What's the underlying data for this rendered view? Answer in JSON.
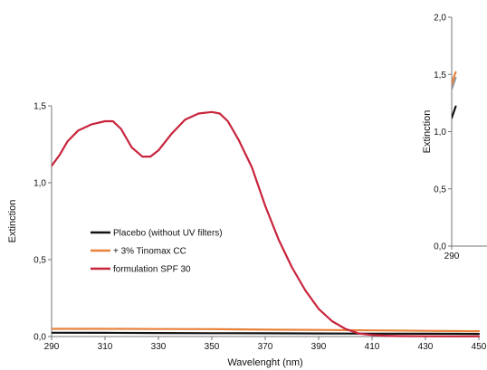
{
  "chart_data": [
    {
      "type": "line",
      "xlabel": "Wavelenght (nm)",
      "ylabel": "Extinction",
      "xlim": [
        290,
        450
      ],
      "ylim": [
        0,
        1.5
      ],
      "xticks": [
        "290",
        "310",
        "330",
        "350",
        "370",
        "390",
        "410",
        "430",
        "450"
      ],
      "yticks": [
        "0,0",
        "0,5",
        "1,0",
        "1,5"
      ],
      "legend_position": "center-left",
      "grid": false,
      "series": [
        {
          "name": "Placebo (without UV filters)",
          "color": "#111111",
          "x": [
            290,
            310,
            330,
            350,
            370,
            390,
            410,
            430,
            450
          ],
          "y": [
            0.025,
            0.024,
            0.023,
            0.022,
            0.021,
            0.02,
            0.019,
            0.018,
            0.017
          ]
        },
        {
          "name": "+ 3% Tinomax CC",
          "color": "#e8823a",
          "x": [
            290,
            310,
            330,
            350,
            370,
            390,
            410,
            430,
            450
          ],
          "y": [
            0.05,
            0.05,
            0.049,
            0.048,
            0.045,
            0.043,
            0.04,
            0.037,
            0.035
          ]
        },
        {
          "name": "formulation SPF 30",
          "color": "#c8243c",
          "x": [
            290,
            293,
            296,
            300,
            305,
            310,
            313,
            316,
            320,
            324,
            327,
            330,
            335,
            340,
            345,
            350,
            353,
            356,
            360,
            365,
            370,
            375,
            380,
            385,
            390,
            395,
            400,
            405,
            410,
            415,
            420,
            430,
            440,
            450
          ],
          "y": [
            1.11,
            1.18,
            1.27,
            1.34,
            1.38,
            1.4,
            1.4,
            1.35,
            1.23,
            1.17,
            1.17,
            1.21,
            1.32,
            1.41,
            1.45,
            1.46,
            1.45,
            1.4,
            1.28,
            1.1,
            0.85,
            0.63,
            0.45,
            0.3,
            0.18,
            0.1,
            0.05,
            0.02,
            0.01,
            0.005,
            0.003,
            0.002,
            0.001,
            0.001
          ]
        }
      ]
    },
    {
      "type": "line",
      "xlabel": "",
      "ylabel": "Extinction",
      "xlim": [
        290,
        450
      ],
      "ylim": [
        0,
        2.0
      ],
      "xticks": [
        "290"
      ],
      "yticks": [
        "0,0",
        "0,5",
        "1,0",
        "1,5",
        "2,0"
      ],
      "grid": false,
      "series": [
        {
          "color": "#111111",
          "x": [
            290,
            295
          ],
          "y": [
            1.12,
            1.22
          ]
        },
        {
          "color": "#999999",
          "x": [
            290,
            295
          ],
          "y": [
            1.37,
            1.47
          ]
        },
        {
          "color": "#e8823a",
          "x": [
            290,
            295
          ],
          "y": [
            1.42,
            1.52
          ]
        }
      ]
    }
  ]
}
